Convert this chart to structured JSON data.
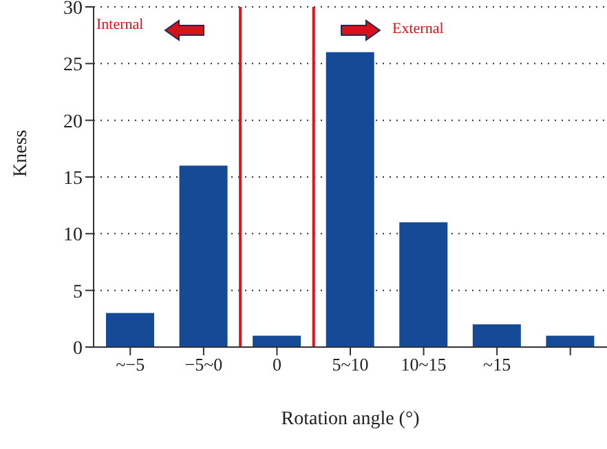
{
  "chart_data": {
    "type": "bar",
    "xlabel": "Rotation angle (°)",
    "ylabel": "Kness",
    "categories": [
      "~−5",
      "−5~0",
      "0",
      "5~10",
      "10~15",
      "~15",
      null
    ],
    "values": [
      3,
      16,
      1,
      26,
      11,
      2,
      1
    ],
    "color": "#154a97",
    "ylim": [
      0,
      30
    ],
    "yticks": [
      0,
      5,
      10,
      15,
      20,
      25,
      30
    ],
    "grid": "y",
    "annotations": [
      "Internal",
      "External"
    ]
  }
}
